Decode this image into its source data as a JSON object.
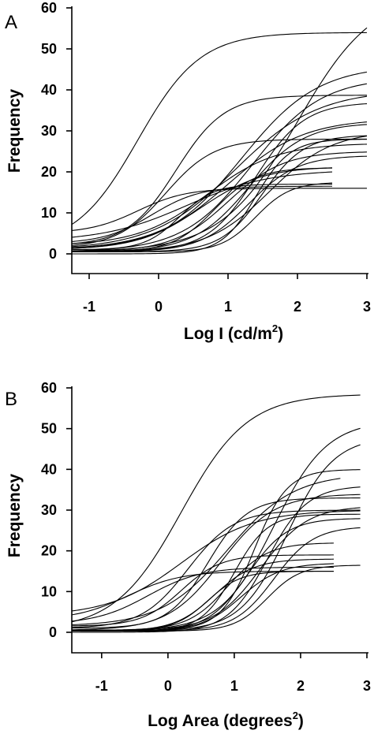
{
  "chart_data": [
    {
      "type": "line",
      "panel": "A",
      "xlabel": "Log I (cd/m",
      "xlabel_sup": "2",
      "xlabel_tail": ")",
      "ylabel": "Frequency",
      "xlim": [
        -1.25,
        3.0
      ],
      "ylim": [
        0,
        60
      ],
      "xticks": [
        -1,
        0,
        1,
        2,
        3
      ],
      "yticks": [
        0,
        10,
        20,
        30,
        40,
        50,
        60
      ],
      "series": [
        {
          "x0": -1.25,
          "x1": 3.0,
          "min": 1.5,
          "max": 54,
          "mid": -0.3,
          "slope": 0.45
        },
        {
          "x0": -1.25,
          "x1": 3.0,
          "min": 2.0,
          "max": 38.7,
          "mid": 0.25,
          "slope": 0.35
        },
        {
          "x0": -1.25,
          "x1": 3.0,
          "min": 0.5,
          "max": 64,
          "mid": 2.0,
          "slope": 0.55
        },
        {
          "x0": -1.25,
          "x1": 3.0,
          "min": 0.8,
          "max": 46,
          "mid": 1.2,
          "slope": 0.55
        },
        {
          "x0": -1.25,
          "x1": 3.0,
          "min": 0.5,
          "max": 43,
          "mid": 1.35,
          "slope": 0.5
        },
        {
          "x0": -1.25,
          "x1": 3.0,
          "min": 1.0,
          "max": 40,
          "mid": 1.1,
          "slope": 0.6
        },
        {
          "x0": -1.25,
          "x1": 3.0,
          "min": 0.5,
          "max": 37,
          "mid": 1.4,
          "slope": 0.35
        },
        {
          "x0": -1.25,
          "x1": 3.0,
          "min": 1.0,
          "max": 33,
          "mid": 1.0,
          "slope": 0.55
        },
        {
          "x0": -1.25,
          "x1": 3.0,
          "min": 0.5,
          "max": 32,
          "mid": 1.3,
          "slope": 0.4
        },
        {
          "x0": -1.25,
          "x1": 3.0,
          "min": 0.5,
          "max": 30,
          "mid": 1.6,
          "slope": 0.45
        },
        {
          "x0": -1.25,
          "x1": 3.0,
          "min": 0.5,
          "max": 29,
          "mid": 1.5,
          "slope": 0.3
        },
        {
          "x0": -1.25,
          "x1": 3.0,
          "min": 0.0,
          "max": 28,
          "mid": 1.4,
          "slope": 0.25
        },
        {
          "x0": -1.25,
          "x1": 3.0,
          "min": 1.5,
          "max": 28,
          "mid": 0.1,
          "slope": 0.35
        },
        {
          "x0": -1.25,
          "x1": 3.0,
          "min": 2.0,
          "max": 27,
          "mid": 0.7,
          "slope": 0.5
        },
        {
          "x0": -1.25,
          "x1": 3.0,
          "min": 0.5,
          "max": 25,
          "mid": 1.0,
          "slope": 0.4
        },
        {
          "x0": -1.25,
          "x1": 3.0,
          "min": 0.5,
          "max": 24,
          "mid": 1.3,
          "slope": 0.35
        },
        {
          "x0": -1.25,
          "x1": 2.5,
          "min": 1.0,
          "max": 21.3,
          "mid": 0.6,
          "slope": 0.45
        },
        {
          "x0": -1.25,
          "x1": 2.5,
          "min": 0.5,
          "max": 21,
          "mid": 0.8,
          "slope": 0.3
        },
        {
          "x0": -1.25,
          "x1": 2.5,
          "min": 3.0,
          "max": 20.5,
          "mid": 0.4,
          "slope": 0.6
        },
        {
          "x0": -1.25,
          "x1": 2.5,
          "min": 1.0,
          "max": 17,
          "mid": 0.3,
          "slope": 0.25
        },
        {
          "x0": -1.25,
          "x1": 2.5,
          "min": 2.5,
          "max": 16.5,
          "mid": -0.1,
          "slope": 0.35
        },
        {
          "x0": -1.25,
          "x1": 2.5,
          "min": 0.5,
          "max": 17.5,
          "mid": 1.4,
          "slope": 0.25
        },
        {
          "x0": -1.25,
          "x1": 3.0,
          "min": 5.0,
          "max": 16,
          "mid": -0.3,
          "slope": 0.35
        }
      ]
    },
    {
      "type": "line",
      "panel": "B",
      "xlabel": "Log Area (degrees",
      "xlabel_sup": "2",
      "xlabel_tail": ")",
      "ylabel": "Frequency",
      "xlim": [
        -1.45,
        3.0
      ],
      "ylim": [
        0,
        60
      ],
      "xticks": [
        -1,
        0,
        1,
        2,
        3
      ],
      "yticks": [
        0,
        10,
        20,
        30,
        40,
        50,
        60
      ],
      "series": [
        {
          "x0": -1.45,
          "x1": 2.9,
          "min": 0.5,
          "max": 58.5,
          "mid": 0.2,
          "slope": 0.5
        },
        {
          "x0": -1.45,
          "x1": 2.9,
          "min": 0.3,
          "max": 52,
          "mid": 1.6,
          "slope": 0.4
        },
        {
          "x0": -1.45,
          "x1": 2.9,
          "min": 0.3,
          "max": 48,
          "mid": 1.8,
          "slope": 0.35
        },
        {
          "x0": -1.45,
          "x1": 2.9,
          "min": 0.5,
          "max": 40,
          "mid": 1.3,
          "slope": 0.25
        },
        {
          "x0": -1.45,
          "x1": 2.6,
          "min": 1.5,
          "max": 39,
          "mid": 0.9,
          "slope": 0.5
        },
        {
          "x0": -1.45,
          "x1": 2.9,
          "min": 0.0,
          "max": 36,
          "mid": 1.5,
          "slope": 0.3
        },
        {
          "x0": -1.45,
          "x1": 2.9,
          "min": 0.5,
          "max": 34,
          "mid": 0.8,
          "slope": 0.4
        },
        {
          "x0": -1.45,
          "x1": 2.9,
          "min": 1.0,
          "max": 33,
          "mid": 0.6,
          "slope": 0.3
        },
        {
          "x0": -1.45,
          "x1": 2.9,
          "min": 0.5,
          "max": 31,
          "mid": 1.4,
          "slope": 0.35
        },
        {
          "x0": -1.45,
          "x1": 2.9,
          "min": 1.0,
          "max": 30,
          "mid": 0.3,
          "slope": 0.35
        },
        {
          "x0": -1.45,
          "x1": 2.9,
          "min": 0.3,
          "max": 29,
          "mid": 1.0,
          "slope": 0.25
        },
        {
          "x0": -1.45,
          "x1": 2.9,
          "min": 0.3,
          "max": 28,
          "mid": 1.2,
          "slope": 0.3
        },
        {
          "x0": -1.45,
          "x1": 2.9,
          "min": 0.3,
          "max": 26,
          "mid": 1.6,
          "slope": 0.3
        },
        {
          "x0": -1.45,
          "x1": 2.5,
          "min": 0.5,
          "max": 22,
          "mid": 0.9,
          "slope": 0.3
        },
        {
          "x0": -1.45,
          "x1": 2.5,
          "min": 1.5,
          "max": 19,
          "mid": 0.2,
          "slope": 0.3
        },
        {
          "x0": -1.45,
          "x1": 2.5,
          "min": 0.3,
          "max": 18,
          "mid": 0.7,
          "slope": 0.3
        },
        {
          "x0": -1.45,
          "x1": 2.5,
          "min": 0.3,
          "max": 17,
          "mid": 1.1,
          "slope": 0.3
        },
        {
          "x0": -1.45,
          "x1": 2.5,
          "min": 2.0,
          "max": 16,
          "mid": -0.3,
          "slope": 0.4
        },
        {
          "x0": -1.45,
          "x1": 2.9,
          "min": 0.3,
          "max": 16.5,
          "mid": 1.5,
          "slope": 0.25
        },
        {
          "x0": -1.45,
          "x1": 2.5,
          "min": 0.5,
          "max": 15,
          "mid": 0.6,
          "slope": 0.25
        },
        {
          "x0": -1.45,
          "x1": 2.5,
          "min": 3.0,
          "max": 15,
          "mid": -0.6,
          "slope": 0.4
        },
        {
          "x0": -1.45,
          "x1": 2.9,
          "min": 4.0,
          "max": 30,
          "mid": 0.2,
          "slope": 0.55
        }
      ]
    }
  ]
}
